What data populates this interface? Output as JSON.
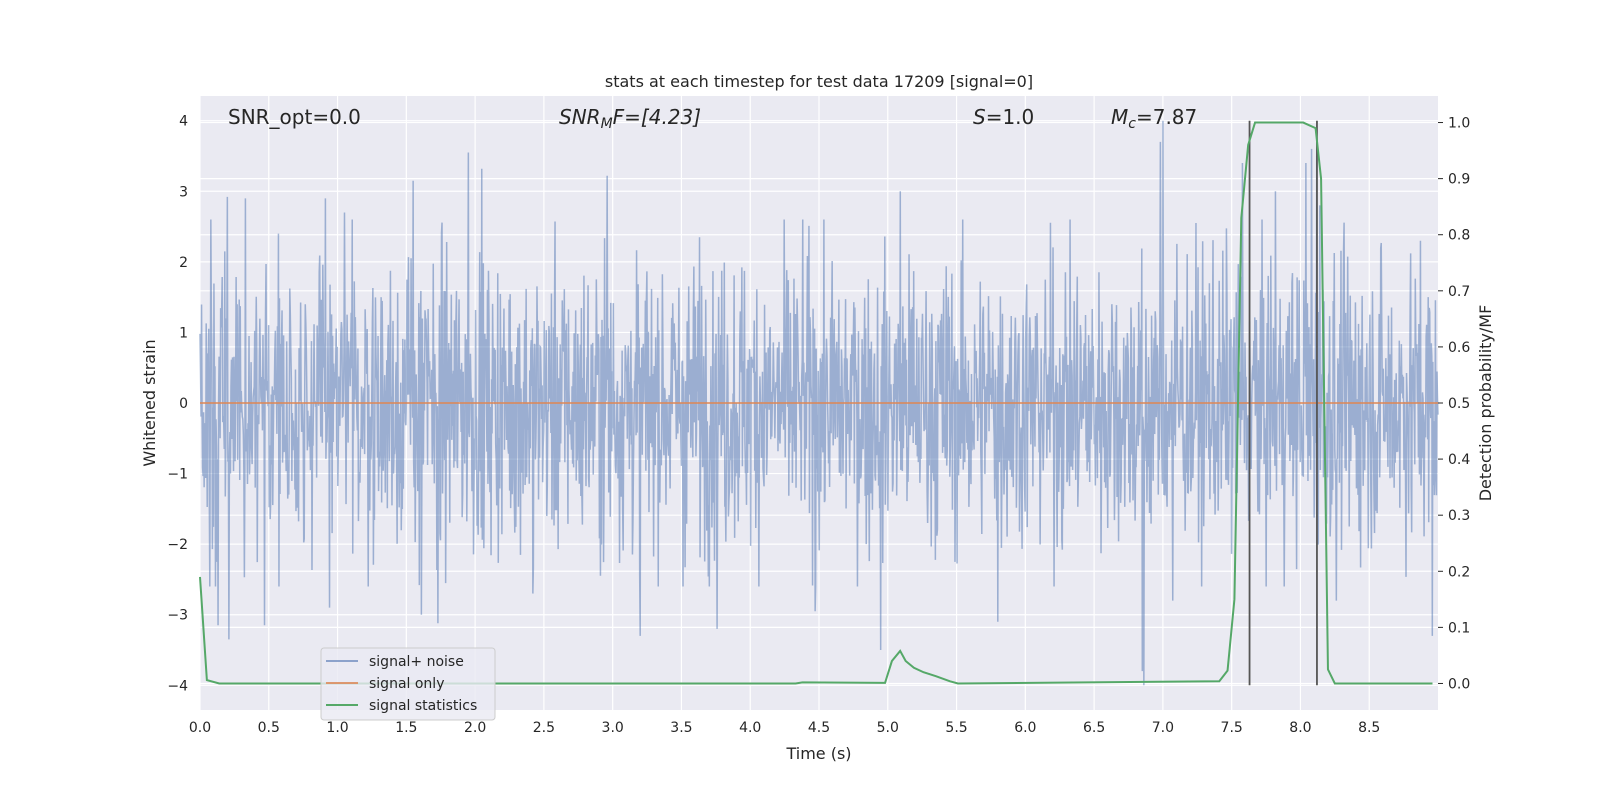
{
  "chart_data": {
    "type": "line",
    "title": "stats at each timestep for test data 17209 [signal=0]",
    "xlabel": "Time (s)",
    "ylabel_left": "Whitened strain",
    "ylabel_right": "Detection probability/MF",
    "xlim": [
      0.0,
      9.0
    ],
    "ylim_left": [
      -4.35,
      4.35
    ],
    "ylim_right": [
      -0.0473,
      1.0473
    ],
    "x_ticks": [
      "0.0",
      "0.5",
      "1.0",
      "1.5",
      "2.0",
      "2.5",
      "3.0",
      "3.5",
      "4.0",
      "4.5",
      "5.0",
      "5.5",
      "6.0",
      "6.5",
      "7.0",
      "7.5",
      "8.0",
      "8.5"
    ],
    "y_ticks_left": [
      "4",
      "3",
      "2",
      "1",
      "0",
      "−1",
      "−2",
      "−3",
      "−4"
    ],
    "y_ticks_right": [
      "1.0",
      "0.9",
      "0.8",
      "0.7",
      "0.6",
      "0.5",
      "0.4",
      "0.3",
      "0.2",
      "0.1",
      "0.0"
    ],
    "grid": true,
    "annotations": {
      "snr_opt": "SNR_opt=0.0",
      "snr_mf_base": "SNR",
      "snr_mf_sub": "M",
      "snr_mf_rest": "F=[4.23]",
      "s_base": "S",
      "s_rest": "=1.0",
      "mc_base": "M",
      "mc_sub": "c",
      "mc_rest": "=7.87"
    },
    "legend": {
      "placement": "lower-left",
      "entries": [
        "signal+ noise",
        "signal only",
        "signal statistics"
      ]
    },
    "series": [
      {
        "name": "signal+ noise",
        "color": "#4c72b0",
        "kind": "noise",
        "typical_amplitude": 1.0,
        "peaks": [
          [
            0.07,
            -2.6
          ],
          [
            0.13,
            -3.15
          ],
          [
            0.2,
            2.92
          ],
          [
            0.21,
            -3.35
          ],
          [
            0.33,
            2.9
          ],
          [
            0.47,
            -3.15
          ],
          [
            0.57,
            2.4
          ],
          [
            0.91,
            2.9
          ],
          [
            0.94,
            -2.9
          ],
          [
            1.05,
            2.7
          ],
          [
            1.55,
            3.15
          ],
          [
            1.61,
            -3.0
          ],
          [
            1.73,
            -3.12
          ],
          [
            1.95,
            3.55
          ],
          [
            2.05,
            3.32
          ],
          [
            2.42,
            -2.7
          ],
          [
            2.96,
            3.22
          ],
          [
            3.2,
            -3.3
          ],
          [
            3.51,
            -2.6
          ],
          [
            3.76,
            -3.2
          ],
          [
            4.47,
            -2.95
          ],
          [
            4.91,
            -1.1
          ],
          [
            4.95,
            -3.5
          ],
          [
            5.09,
            3.0
          ],
          [
            5.8,
            -3.1
          ],
          [
            6.85,
            -3.8
          ],
          [
            6.86,
            -4.0
          ],
          [
            6.98,
            3.7
          ],
          [
            7.0,
            4.0
          ],
          [
            7.07,
            -2.8
          ],
          [
            7.58,
            3.4
          ],
          [
            7.82,
            3.0
          ],
          [
            8.04,
            3.4
          ],
          [
            8.08,
            3.6
          ],
          [
            8.12,
            3.5
          ],
          [
            8.14,
            2.8
          ],
          [
            8.26,
            -2.8
          ],
          [
            8.96,
            -3.3
          ]
        ]
      },
      {
        "name": "signal only",
        "color": "#dd8452",
        "x": [
          0.0,
          9.0
        ],
        "y": [
          0.0,
          0.0
        ]
      },
      {
        "name": "signal statistics",
        "color": "#55a868",
        "axis": "right",
        "x": [
          0.0,
          0.05,
          0.14,
          4.33,
          4.38,
          4.98,
          5.03,
          5.09,
          5.13,
          5.19,
          5.26,
          5.35,
          5.45,
          5.51,
          7.41,
          7.47,
          7.52,
          7.57,
          7.62,
          7.67,
          7.71,
          8.02,
          8.11,
          8.15,
          8.2,
          8.25,
          8.96
        ],
        "y": [
          0.19,
          0.006,
          0.0,
          0.0,
          0.002,
          0.001,
          0.04,
          0.058,
          0.04,
          0.028,
          0.02,
          0.013,
          0.004,
          0.0,
          0.004,
          0.023,
          0.15,
          0.83,
          0.96,
          1.0,
          1.0,
          1.0,
          0.99,
          0.9,
          0.025,
          0.0,
          0.0
        ]
      }
    ],
    "vertical_markers": {
      "color": "#555555",
      "x": [
        7.63,
        8.12
      ],
      "y_range": [
        -4.0,
        4.0
      ]
    }
  }
}
